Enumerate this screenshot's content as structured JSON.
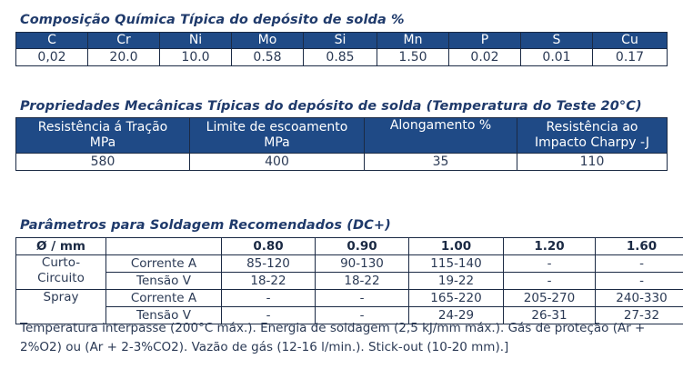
{
  "chemical": {
    "title": "Composição Química Típica do depósito de solda %",
    "headers": [
      "C",
      "Cr",
      "Ni",
      "Mo",
      "Si",
      "Mn",
      "P",
      "S",
      "Cu"
    ],
    "values": [
      "0,02",
      "20.0",
      "10.0",
      "0.58",
      "0.85",
      "1.50",
      "0.02",
      "0.01",
      "0.17"
    ]
  },
  "mechanical": {
    "title": "Propriedades Mecânicas Típicas do depósito de solda (Temperatura do Teste 20°C)",
    "headers": [
      {
        "line1": "Resistência á Tração",
        "line2": "MPa"
      },
      {
        "line1": "Limite de escoamento",
        "line2": "MPa"
      },
      {
        "line1": "Alongamento %",
        "line2": ""
      },
      {
        "line1": "Resistência ao",
        "line2": "Impacto Charpy -J"
      }
    ],
    "values": [
      "580",
      "400",
      "35",
      "110"
    ]
  },
  "parameters": {
    "title": "Parâmetros para Soldagem Recomendados (DC+)",
    "diameter_label": "Ø / mm",
    "diameters": [
      "0.80",
      "0.90",
      "1.00",
      "1.20",
      "1.60"
    ],
    "groups": [
      {
        "line1": "Curto-",
        "line2": "Circuito",
        "rows": [
          {
            "label": "Corrente A",
            "values": [
              "85-120",
              "90-130",
              "115-140",
              "-",
              "-"
            ]
          },
          {
            "label": "Tensão V",
            "values": [
              "18-22",
              "18-22",
              "19-22",
              "-",
              "-"
            ]
          }
        ]
      },
      {
        "line1": "Spray",
        "line2": "",
        "rows": [
          {
            "label": "Corrente A",
            "values": [
              "-",
              "-",
              "165-220",
              "205-270",
              "240-330"
            ]
          },
          {
            "label": "Tensão V",
            "values": [
              "-",
              "-",
              "24-29",
              "26-31",
              "27-32"
            ]
          }
        ]
      }
    ]
  },
  "note": "Temperatura interpasse (200°C máx.). Energia de soldagem (2,5 kJ/mm máx.). Gás de proteção (Ar + 2%O2) ou (Ar + 2-3%CO2). Vazão de gás (12-16 l/min.). Stick-out (10-20 mm).]"
}
